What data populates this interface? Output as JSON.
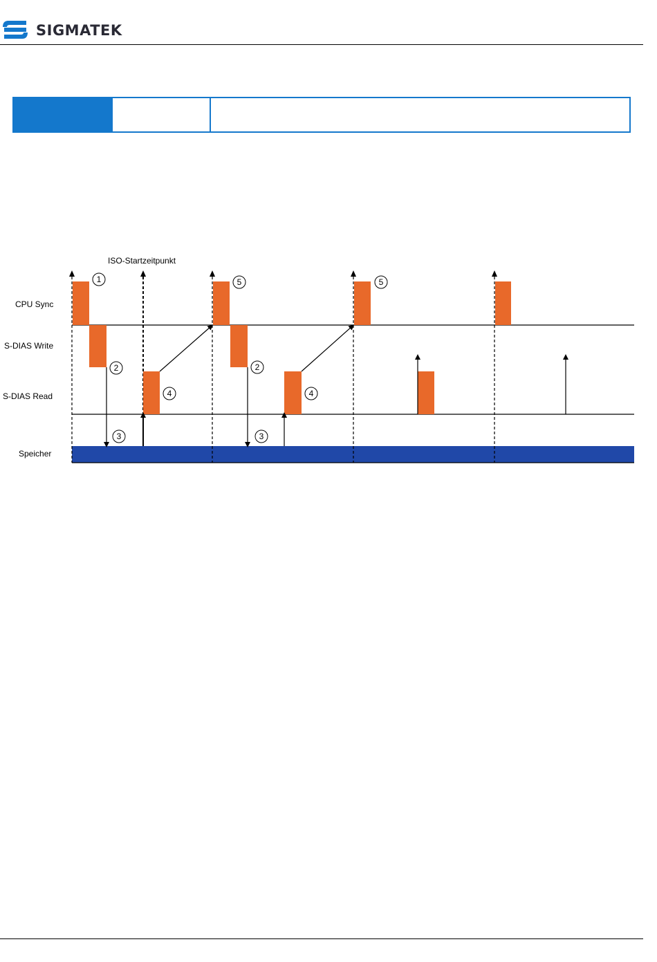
{
  "brand": {
    "name": "SIGMATEK",
    "color": "#1478cc"
  },
  "timing_diagram": {
    "top_label": "ISO-Startzeitpunkt",
    "rows": {
      "cpu_sync": "CPU Sync",
      "sdias_write": "S-DIAS Write",
      "sdias_read": "S-DIAS Read",
      "speicher": "Speicher"
    },
    "markers": [
      "1",
      "2",
      "3",
      "4",
      "5",
      "2",
      "3",
      "4",
      "5"
    ],
    "colors": {
      "block": "#e8692a",
      "memory": "#2048a8",
      "line": "#000000"
    }
  }
}
